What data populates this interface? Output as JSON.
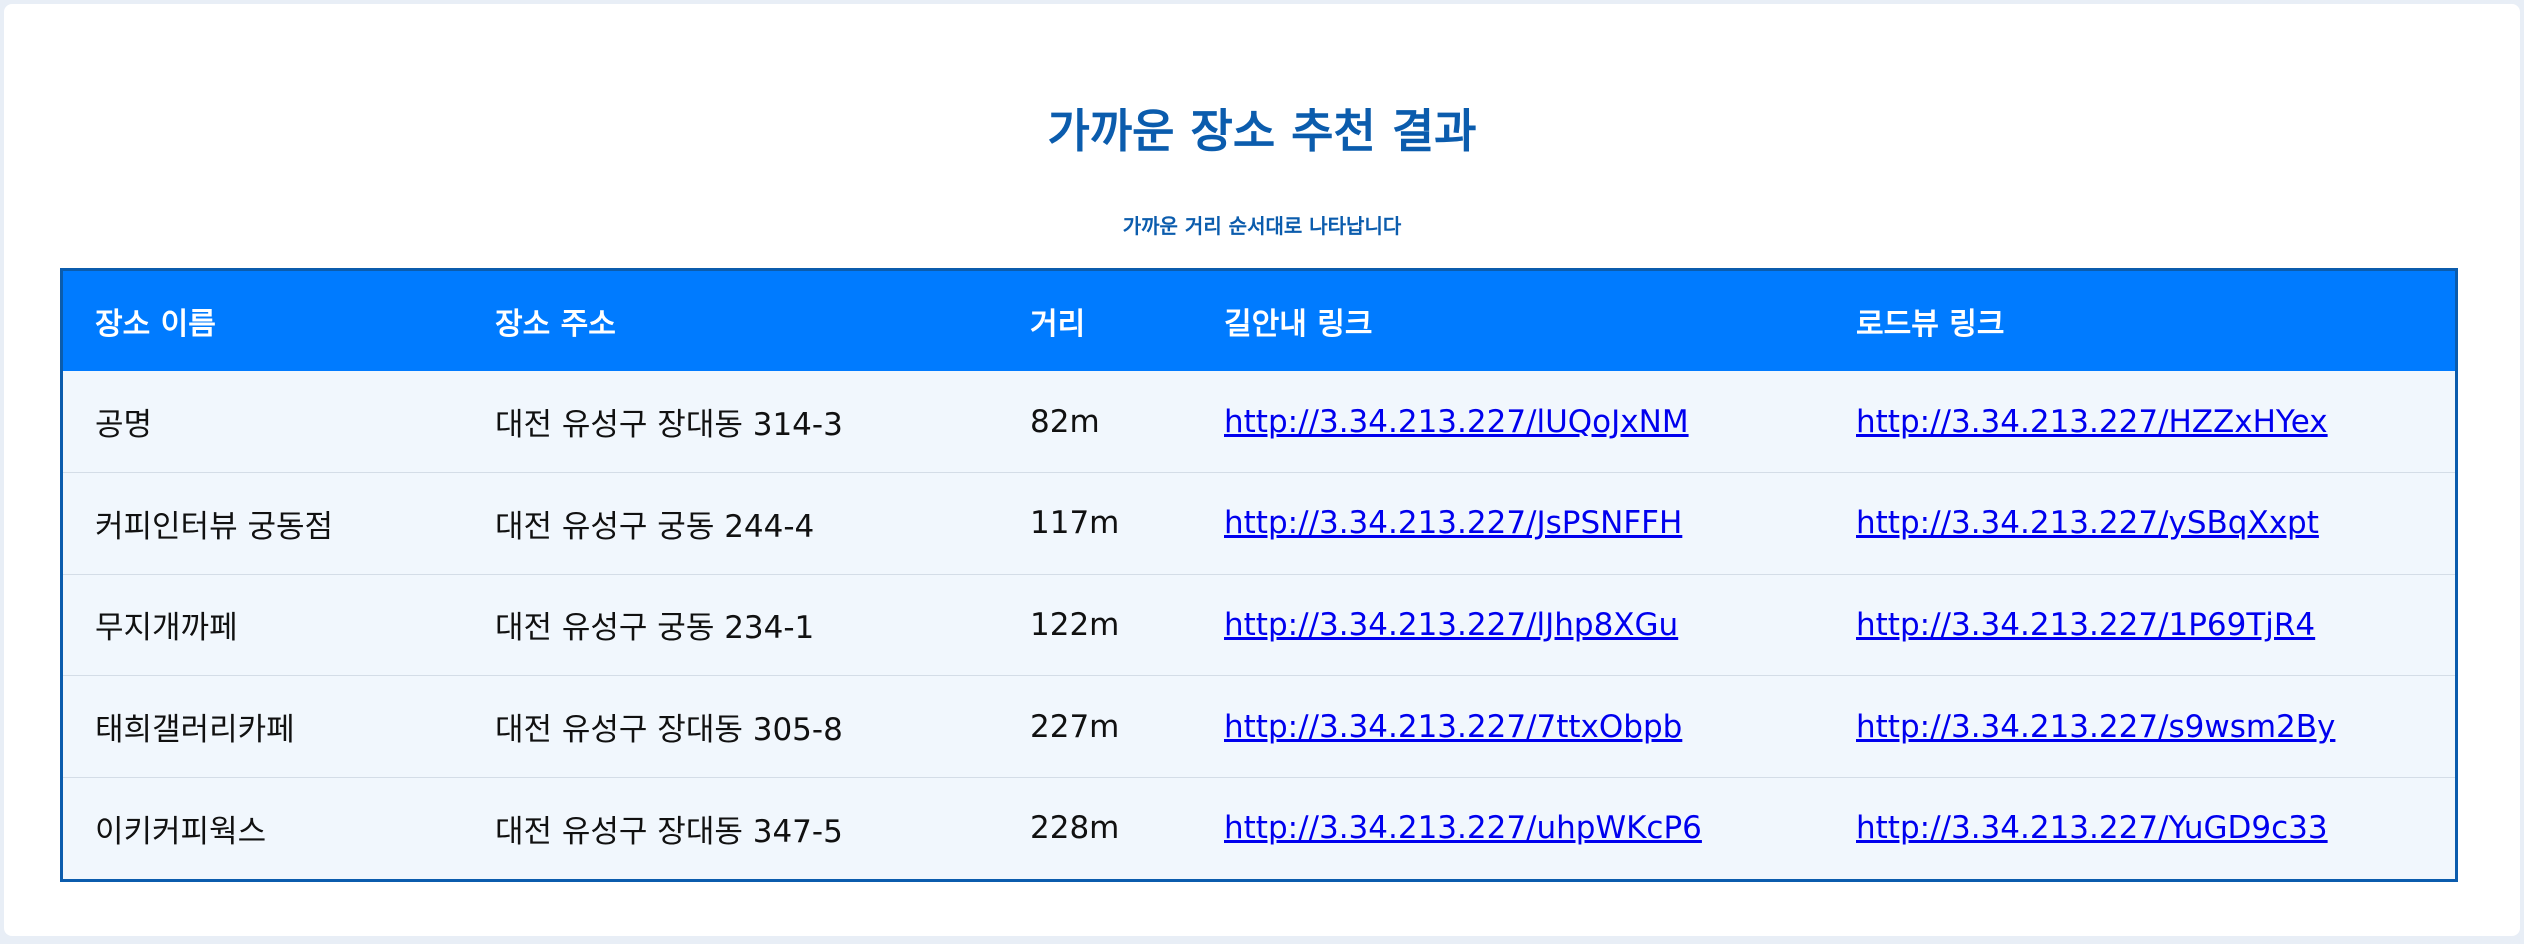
{
  "page": {
    "title": "가까운 장소 추천 결과",
    "subtitle": "가까운 거리 순서대로 나타납니다"
  },
  "table": {
    "headers": [
      "장소 이름",
      "장소 주소",
      "거리",
      "길안내 링크",
      "로드뷰 링크"
    ],
    "rows": [
      {
        "name": "공명",
        "address": "대전 유성구 장대동 314-3",
        "distance": "82m",
        "directions": "http://3.34.213.227/lUQoJxNM",
        "roadview": "http://3.34.213.227/HZZxHYex"
      },
      {
        "name": "커피인터뷰 궁동점",
        "address": "대전 유성구 궁동 244-4",
        "distance": "117m",
        "directions": "http://3.34.213.227/JsPSNFFH",
        "roadview": "http://3.34.213.227/ySBqXxpt"
      },
      {
        "name": "무지개까페",
        "address": "대전 유성구 궁동 234-1",
        "distance": "122m",
        "directions": "http://3.34.213.227/lJhp8XGu",
        "roadview": "http://3.34.213.227/1P69TjR4"
      },
      {
        "name": "태희갤러리카페",
        "address": "대전 유성구 장대동 305-8",
        "distance": "227m",
        "directions": "http://3.34.213.227/7ttxObpb",
        "roadview": "http://3.34.213.227/s9wsm2By"
      },
      {
        "name": "이키커피웍스",
        "address": "대전 유성구 장대동 347-5",
        "distance": "228m",
        "directions": "http://3.34.213.227/uhpWKcP6",
        "roadview": "http://3.34.213.227/YuGD9c33"
      }
    ]
  },
  "colors": {
    "accent": "#0b5cad",
    "header_bg": "#007bff",
    "row_bg": "#f1f7fd",
    "link": "#0000ee"
  }
}
